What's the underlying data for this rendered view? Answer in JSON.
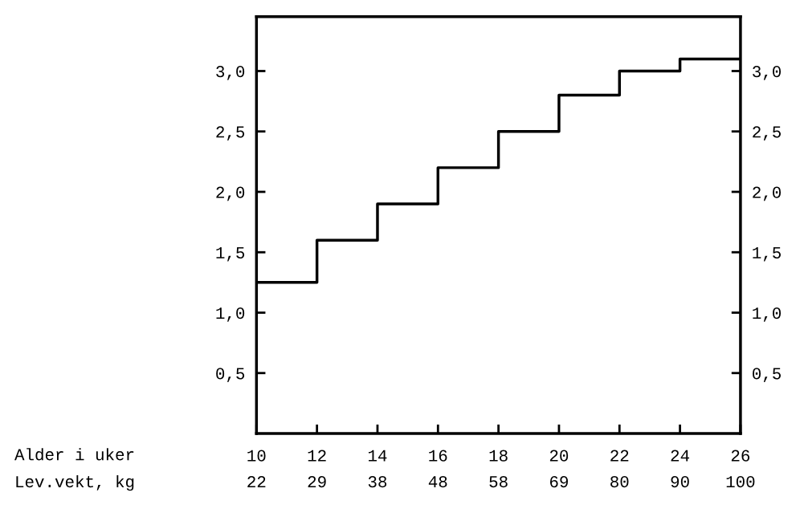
{
  "chart_data": {
    "type": "step",
    "x": [
      10,
      12,
      14,
      16,
      18,
      20,
      22,
      24,
      26
    ],
    "series": [
      {
        "color": "#000000",
        "values": [
          1.25,
          1.6,
          1.9,
          2.2,
          2.5,
          2.8,
          3.0,
          3.1,
          3.1
        ]
      }
    ],
    "xlabel": "Alder i uker",
    "x2label": "Lev.vekt, kg",
    "xlim": [
      10,
      26
    ],
    "xticks": [
      10,
      12,
      14,
      16,
      18,
      20,
      22,
      24,
      26
    ],
    "annotations": [
      "22",
      "29",
      "38",
      "48",
      "58",
      "69",
      "80",
      "90",
      "100"
    ],
    "ylim": [
      0,
      3.45
    ],
    "yticks": [
      {
        "value": 0.5,
        "label": "0,5"
      },
      {
        "value": 1.0,
        "label": "1,0"
      },
      {
        "value": 1.5,
        "label": "1,5"
      },
      {
        "value": 2.0,
        "label": "2,0"
      },
      {
        "value": 2.5,
        "label": "2,5"
      },
      {
        "value": 3.0,
        "label": "3,0"
      }
    ],
    "y2lim": [
      0,
      3.45
    ],
    "y2ticks": [
      {
        "value": 0.5,
        "label": "0,5"
      },
      {
        "value": 1.0,
        "label": "1,0"
      },
      {
        "value": 1.5,
        "label": "1,5"
      },
      {
        "value": 2.0,
        "label": "2,0"
      },
      {
        "value": 2.5,
        "label": "2,5"
      },
      {
        "value": 3.0,
        "label": "3,0"
      }
    ],
    "grid": false,
    "legend": false
  }
}
